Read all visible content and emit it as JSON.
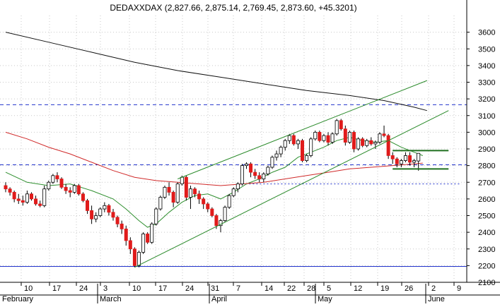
{
  "chart_data": {
    "type": "candlestick",
    "title": "DEDAXXDAX (2,827.66, 2,875.14, 2,769.45, 2,873.60, +45.3201)",
    "ylim": [
      2100,
      3700
    ],
    "y_ticks": [
      2100,
      2200,
      2300,
      2400,
      2500,
      2600,
      2700,
      2800,
      2900,
      3000,
      3100,
      3200,
      3300,
      3400,
      3500,
      3600
    ],
    "x_ticks": [
      "10",
      "17",
      "24",
      "3",
      "10",
      "17",
      "24",
      "31",
      "7",
      "14",
      "22",
      "28",
      "5",
      "12",
      "19",
      "26",
      "2",
      "9"
    ],
    "month_labels": [
      "February",
      "March",
      "April",
      "May",
      "June"
    ],
    "candles": [
      [
        2680,
        2700,
        2640,
        2660
      ],
      [
        2660,
        2670,
        2620,
        2640
      ],
      [
        2640,
        2650,
        2580,
        2600
      ],
      [
        2600,
        2630,
        2570,
        2590
      ],
      [
        2590,
        2620,
        2560,
        2580
      ],
      [
        2580,
        2650,
        2570,
        2630
      ],
      [
        2630,
        2640,
        2590,
        2600
      ],
      [
        2600,
        2620,
        2560,
        2570
      ],
      [
        2570,
        2590,
        2550,
        2560
      ],
      [
        2560,
        2680,
        2550,
        2660
      ],
      [
        2660,
        2710,
        2650,
        2700
      ],
      [
        2700,
        2750,
        2690,
        2740
      ],
      [
        2740,
        2760,
        2700,
        2720
      ],
      [
        2720,
        2730,
        2660,
        2670
      ],
      [
        2670,
        2690,
        2630,
        2650
      ],
      [
        2650,
        2670,
        2610,
        2640
      ],
      [
        2640,
        2690,
        2630,
        2680
      ],
      [
        2680,
        2690,
        2620,
        2630
      ],
      [
        2630,
        2640,
        2580,
        2590
      ],
      [
        2590,
        2600,
        2510,
        2530
      ],
      [
        2530,
        2560,
        2450,
        2480
      ],
      [
        2480,
        2520,
        2460,
        2500
      ],
      [
        2500,
        2550,
        2490,
        2540
      ],
      [
        2540,
        2580,
        2520,
        2560
      ],
      [
        2560,
        2570,
        2500,
        2520
      ],
      [
        2520,
        2540,
        2470,
        2490
      ],
      [
        2490,
        2500,
        2430,
        2450
      ],
      [
        2450,
        2470,
        2390,
        2420
      ],
      [
        2420,
        2440,
        2320,
        2350
      ],
      [
        2350,
        2370,
        2270,
        2300
      ],
      [
        2300,
        2310,
        2190,
        2200
      ],
      [
        2200,
        2290,
        2190,
        2280
      ],
      [
        2280,
        2400,
        2270,
        2390
      ],
      [
        2390,
        2400,
        2330,
        2340
      ],
      [
        2340,
        2460,
        2330,
        2450
      ],
      [
        2450,
        2550,
        2440,
        2540
      ],
      [
        2540,
        2620,
        2530,
        2610
      ],
      [
        2610,
        2680,
        2600,
        2670
      ],
      [
        2670,
        2700,
        2620,
        2640
      ],
      [
        2640,
        2650,
        2550,
        2580
      ],
      [
        2580,
        2700,
        2570,
        2690
      ],
      [
        2690,
        2740,
        2680,
        2730
      ],
      [
        2730,
        2740,
        2590,
        2610
      ],
      [
        2610,
        2680,
        2540,
        2660
      ],
      [
        2660,
        2670,
        2610,
        2630
      ],
      [
        2630,
        2650,
        2570,
        2600
      ],
      [
        2600,
        2610,
        2540,
        2570
      ],
      [
        2570,
        2580,
        2520,
        2540
      ],
      [
        2540,
        2550,
        2490,
        2500
      ],
      [
        2500,
        2510,
        2420,
        2440
      ],
      [
        2440,
        2480,
        2400,
        2470
      ],
      [
        2470,
        2560,
        2460,
        2550
      ],
      [
        2550,
        2630,
        2540,
        2620
      ],
      [
        2620,
        2670,
        2610,
        2660
      ],
      [
        2660,
        2700,
        2640,
        2690
      ],
      [
        2690,
        2810,
        2680,
        2800
      ],
      [
        2800,
        2820,
        2780,
        2810
      ],
      [
        2810,
        2820,
        2730,
        2760
      ],
      [
        2760,
        2780,
        2720,
        2740
      ],
      [
        2740,
        2760,
        2700,
        2720
      ],
      [
        2720,
        2760,
        2700,
        2750
      ],
      [
        2750,
        2800,
        2740,
        2790
      ],
      [
        2790,
        2860,
        2780,
        2850
      ],
      [
        2850,
        2890,
        2830,
        2870
      ],
      [
        2870,
        2920,
        2850,
        2910
      ],
      [
        2910,
        2960,
        2890,
        2950
      ],
      [
        2950,
        2990,
        2930,
        2980
      ],
      [
        2980,
        2990,
        2920,
        2930
      ],
      [
        2930,
        2960,
        2900,
        2950
      ],
      [
        2950,
        2960,
        2820,
        2830
      ],
      [
        2830,
        2870,
        2820,
        2860
      ],
      [
        2860,
        2970,
        2850,
        2960
      ],
      [
        2960,
        3010,
        2950,
        3000
      ],
      [
        3000,
        3010,
        2940,
        2950
      ],
      [
        2950,
        2990,
        2940,
        2980
      ],
      [
        2980,
        3000,
        2920,
        2940
      ],
      [
        2940,
        3000,
        2930,
        2990
      ],
      [
        2990,
        3080,
        2980,
        3070
      ],
      [
        3070,
        3080,
        3010,
        3020
      ],
      [
        3020,
        3040,
        2920,
        2940
      ],
      [
        2940,
        3010,
        2930,
        3000
      ],
      [
        3000,
        3010,
        2880,
        2900
      ],
      [
        2900,
        2970,
        2890,
        2960
      ],
      [
        2960,
        2970,
        2910,
        2920
      ],
      [
        2920,
        2960,
        2910,
        2950
      ],
      [
        2950,
        2970,
        2920,
        2930
      ],
      [
        2930,
        2950,
        2900,
        2940
      ],
      [
        2940,
        3000,
        2930,
        2990
      ],
      [
        2990,
        3040,
        2970,
        2980
      ],
      [
        2980,
        2990,
        2840,
        2860
      ],
      [
        2860,
        2880,
        2810,
        2840
      ],
      [
        2840,
        2850,
        2790,
        2810
      ],
      [
        2810,
        2840,
        2790,
        2830
      ],
      [
        2830,
        2880,
        2820,
        2860
      ],
      [
        2860,
        2880,
        2800,
        2820
      ],
      [
        2820,
        2840,
        2790,
        2830
      ],
      [
        2827.66,
        2875.14,
        2769.45,
        2873.6
      ]
    ],
    "moving_averages": [
      {
        "color": "#2f8f2f",
        "values": [
          [
            0,
            2760
          ],
          [
            5,
            2700
          ],
          [
            10,
            2680
          ],
          [
            15,
            2690
          ],
          [
            20,
            2650
          ],
          [
            25,
            2600
          ],
          [
            28,
            2540
          ],
          [
            31,
            2470
          ],
          [
            33,
            2430
          ],
          [
            35,
            2450
          ],
          [
            38,
            2520
          ],
          [
            41,
            2580
          ],
          [
            44,
            2620
          ],
          [
            47,
            2630
          ],
          [
            50,
            2600
          ],
          [
            53,
            2640
          ],
          [
            56,
            2690
          ],
          [
            59,
            2720
          ],
          [
            62,
            2760
          ],
          [
            65,
            2790
          ],
          [
            68,
            2850
          ],
          [
            71,
            2880
          ],
          [
            74,
            2910
          ],
          [
            77,
            2950
          ],
          [
            80,
            2970
          ],
          [
            83,
            2950
          ],
          [
            86,
            2940
          ],
          [
            89,
            2950
          ],
          [
            92,
            2910
          ],
          [
            95,
            2880
          ],
          [
            97,
            2860
          ]
        ]
      },
      {
        "color": "#d02a2a",
        "values": [
          [
            0,
            3000
          ],
          [
            5,
            2960
          ],
          [
            10,
            2910
          ],
          [
            15,
            2870
          ],
          [
            20,
            2820
          ],
          [
            25,
            2770
          ],
          [
            30,
            2730
          ],
          [
            35,
            2710
          ],
          [
            40,
            2700
          ],
          [
            45,
            2690
          ],
          [
            50,
            2680
          ],
          [
            55,
            2690
          ],
          [
            60,
            2700
          ],
          [
            65,
            2720
          ],
          [
            70,
            2740
          ],
          [
            75,
            2760
          ],
          [
            80,
            2780
          ],
          [
            85,
            2790
          ],
          [
            90,
            2800
          ],
          [
            95,
            2810
          ],
          [
            97,
            2815
          ]
        ]
      },
      {
        "color": "#111111",
        "values": [
          [
            0,
            3600
          ],
          [
            10,
            3540
          ],
          [
            20,
            3480
          ],
          [
            30,
            3420
          ],
          [
            40,
            3370
          ],
          [
            50,
            3330
          ],
          [
            60,
            3290
          ],
          [
            70,
            3250
          ],
          [
            80,
            3220
          ],
          [
            88,
            3190
          ],
          [
            95,
            3150
          ],
          [
            98,
            3130
          ]
        ]
      }
    ],
    "trendlines": [
      {
        "color": "#2a8a2a",
        "from": [
          30,
          2190
        ],
        "to": [
          103,
          3130
        ]
      },
      {
        "color": "#2a8a2a",
        "from": [
          40,
          2720
        ],
        "to": [
          98,
          3310
        ]
      },
      {
        "color": "#1f6f1f",
        "from": [
          90,
          2890
        ],
        "to": [
          103,
          2890
        ],
        "width": 2
      },
      {
        "color": "#1f6f1f",
        "from": [
          90,
          2780
        ],
        "to": [
          103,
          2780
        ],
        "width": 2
      }
    ],
    "horizontal_lines": [
      {
        "value": 3165,
        "color": "#2233cc",
        "style": "dashed"
      },
      {
        "value": 2805,
        "color": "#2233cc",
        "style": "dashed"
      },
      {
        "value": 2195,
        "color": "#2233cc",
        "style": "solid"
      },
      {
        "value": 2690,
        "color": "#2233cc",
        "style": "dotted",
        "from": 55,
        "to": 106
      }
    ],
    "colors": {
      "up": "#ffffff",
      "down": "#e01b1b",
      "wick": "#000000",
      "axis": "#000000",
      "grid": "#c9c9c9"
    }
  }
}
